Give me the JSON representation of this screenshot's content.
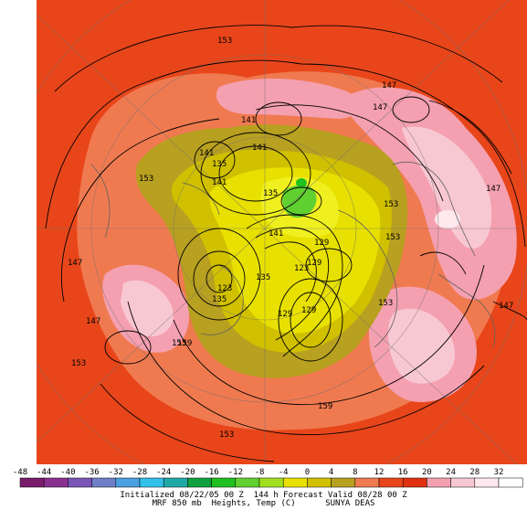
{
  "map": {
    "projection": "polar-stereographic",
    "colors": {
      "background": "#e8461a",
      "warm": "#f07a50",
      "pink": "#f4a0b0",
      "pale_pink": "#f8c8d2",
      "white": "#ffe8ee",
      "olive": "#b8a020",
      "yellow_olive": "#d0c000",
      "yellow": "#e8e000",
      "bright_yellow": "#f0f020",
      "green": "#60d030",
      "contour": "#000000",
      "coast": "#707070"
    },
    "contour_labels": [
      "153",
      "147",
      "147",
      "141",
      "141",
      "141",
      "135",
      "153",
      "135",
      "141",
      "141",
      "153",
      "147",
      "153",
      "153",
      "129",
      "129",
      "123",
      "135",
      "129",
      "129",
      "123",
      "135",
      "153",
      "147",
      "147",
      "153",
      "159",
      "159",
      "153",
      "147"
    ]
  },
  "colorbar": {
    "ticks": [
      "-48",
      "-44",
      "-40",
      "-36",
      "-32",
      "-28",
      "-24",
      "-20",
      "-16",
      "-12",
      "-8",
      "-4",
      "0",
      "4",
      "8",
      "12",
      "16",
      "20",
      "24",
      "28",
      "32"
    ],
    "swatches": [
      "#7a1a6a",
      "#8a3090",
      "#7a56b8",
      "#7080c8",
      "#4aa0e0",
      "#30c0e8",
      "#20a8a8",
      "#10a040",
      "#20c020",
      "#60d030",
      "#a0e020",
      "#e8e000",
      "#d0c000",
      "#b8a020",
      "#f07a50",
      "#e8461a",
      "#e03010",
      "#f4a0b0",
      "#f8c8d2",
      "#ffe8ee",
      "#ffffff"
    ]
  },
  "footer": {
    "line1": "Initialized 08/22/05 00 Z  144 h Forecast Valid 08/28 00 Z",
    "line2": "MRF 850 mb  Heights, Temp (C)      SUNYA DEAS"
  }
}
